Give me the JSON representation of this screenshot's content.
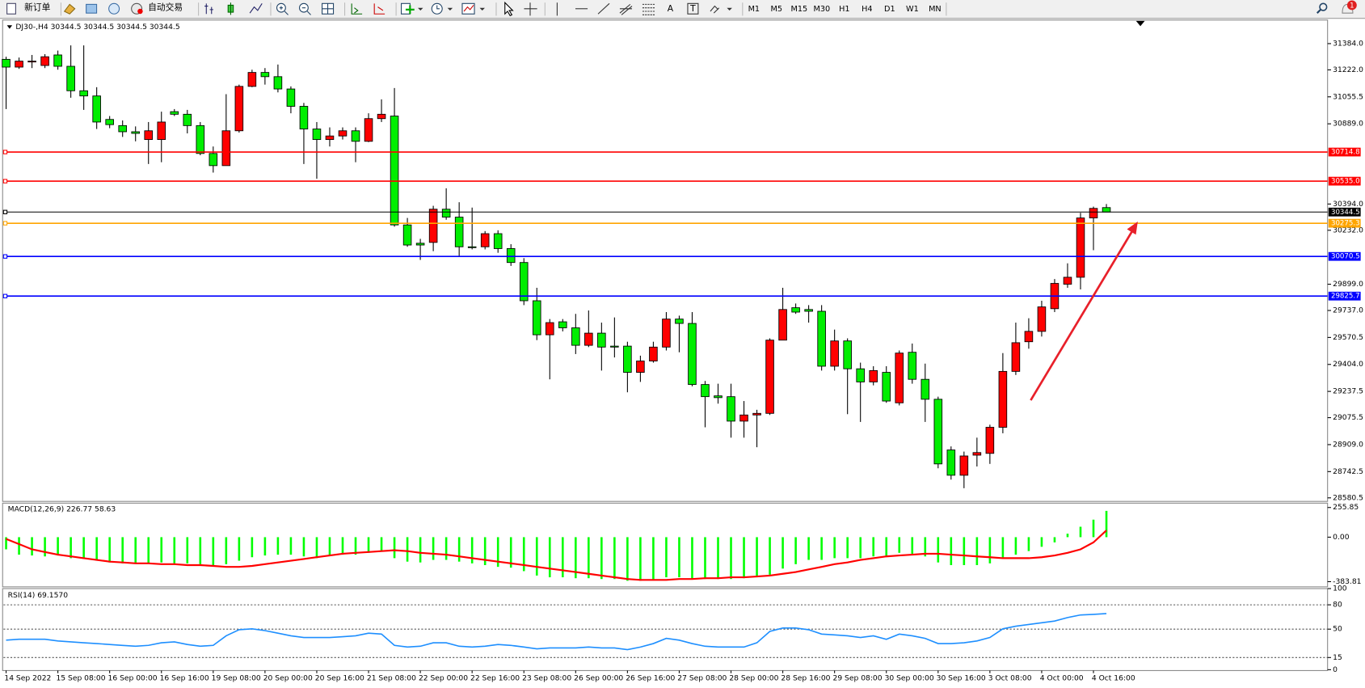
{
  "toolbar": {
    "new_order": "新订单",
    "auto_trading": "自动交易",
    "text_tool": "A",
    "label_tool": "T",
    "timeframes": [
      "M1",
      "M5",
      "M15",
      "M30",
      "H1",
      "H4",
      "D1",
      "W1",
      "MN"
    ],
    "notifications": 1
  },
  "chart_data": [
    {
      "type": "candlestick",
      "title": "DJ30-,H4  30344.5 30344.5 30344.5 30344.5",
      "categories": [
        "14 Sep 2022",
        null,
        null,
        null,
        "15 Sep 08:00",
        null,
        null,
        null,
        "16 Sep 00:00",
        null,
        null,
        null,
        "16 Sep 16:00",
        null,
        null,
        null,
        "19 Sep 08:00",
        null,
        null,
        null,
        "20 Sep 00:00",
        null,
        null,
        null,
        "20 Sep 16:00",
        null,
        null,
        null,
        "21 Sep 08:00",
        null,
        null,
        null,
        "22 Sep 00:00",
        null,
        null,
        null,
        "22 Sep 16:00",
        null,
        null,
        null,
        "23 Sep 08:00",
        null,
        null,
        null,
        "26 Sep 00:00",
        null,
        null,
        null,
        "26 Sep 16:00",
        null,
        null,
        null,
        "27 Sep 08:00",
        null,
        null,
        null,
        "28 Sep 00:00",
        null,
        null,
        null,
        "28 Sep 16:00",
        null,
        null,
        null,
        "29 Sep 08:00",
        null,
        null,
        null,
        "30 Sep 00:00",
        null,
        null,
        null,
        "30 Sep 16:00",
        null,
        null,
        null,
        "3 Oct 08:00",
        null,
        null,
        null,
        "4 Oct 00:00",
        null,
        null,
        null,
        "4 Oct 16:00",
        null
      ],
      "open": [
        31287,
        31239,
        31271,
        31249,
        31314,
        31244,
        31093,
        31061,
        30916,
        30878,
        30840,
        30792,
        30792,
        30964,
        30948,
        30878,
        30706,
        30631,
        30846,
        31120,
        31206,
        31180,
        31104,
        30997,
        30857,
        30792,
        30814,
        30846,
        30781,
        30921,
        30937,
        30265,
        30152,
        30157,
        30362,
        30313,
        30130,
        30130,
        30211,
        30119,
        30033,
        29797,
        29587,
        29667,
        29630,
        29522,
        29597,
        29517,
        29517,
        29355,
        29425,
        29511,
        29684,
        29657,
        29280,
        29210,
        29205,
        29054,
        29092,
        29102,
        29554,
        29754,
        29743,
        29732,
        29393,
        29549,
        29377,
        29296,
        29355,
        29167,
        29479,
        29312,
        29189,
        28876,
        28720,
        28844,
        28855,
        29016,
        29361,
        29544,
        29608,
        29748,
        29899,
        29942,
        30308,
        30372
      ],
      "high": [
        31303,
        31298,
        31314,
        31319,
        31341,
        31373,
        31373,
        31115,
        30937,
        30910,
        30873,
        30900,
        30964,
        30980,
        30975,
        30900,
        30749,
        31072,
        31131,
        31223,
        31233,
        31255,
        31120,
        31018,
        30900,
        30867,
        30867,
        30867,
        30954,
        31040,
        31110,
        30308,
        30179,
        30383,
        30491,
        30405,
        30372,
        30227,
        30232,
        30146,
        30060,
        29877,
        29684,
        29684,
        29716,
        29737,
        29662,
        29694,
        29544,
        29458,
        29544,
        29727,
        29705,
        29727,
        29302,
        29285,
        29285,
        29178,
        29124,
        29565,
        29877,
        29780,
        29770,
        29770,
        29619,
        29565,
        29415,
        29393,
        29393,
        29490,
        29533,
        29409,
        29205,
        28898,
        28866,
        28952,
        29032,
        29474,
        29662,
        29689,
        29797,
        29931,
        30028,
        30340,
        30378,
        30394
      ],
      "low": [
        30980,
        31228,
        31233,
        31233,
        31223,
        31050,
        30975,
        30857,
        30862,
        30808,
        30781,
        30641,
        30652,
        30937,
        30830,
        30695,
        30588,
        30631,
        30835,
        31115,
        31131,
        31083,
        30954,
        30641,
        30550,
        30749,
        30792,
        30652,
        30776,
        30900,
        30254,
        30130,
        30049,
        30103,
        30297,
        30071,
        30114,
        30114,
        30093,
        30012,
        29770,
        29554,
        29312,
        29608,
        29468,
        29511,
        29366,
        29447,
        29232,
        29296,
        29415,
        29490,
        29479,
        29269,
        29016,
        29162,
        28952,
        28952,
        28893,
        29092,
        29554,
        29716,
        29662,
        29366,
        29366,
        29097,
        29049,
        29275,
        29167,
        29151,
        29285,
        29049,
        28763,
        28693,
        28640,
        28774,
        28790,
        28979,
        29339,
        29501,
        29576,
        29727,
        29877,
        29867,
        30109,
        30345
      ],
      "close": [
        31239,
        31276,
        31276,
        31303,
        31244,
        31093,
        31061,
        30900,
        30884,
        30840,
        30830,
        30846,
        30900,
        30948,
        30878,
        30706,
        30631,
        30846,
        31120,
        31206,
        31180,
        31104,
        30997,
        30857,
        30792,
        30814,
        30846,
        30781,
        30921,
        30948,
        30265,
        30141,
        30141,
        30362,
        30313,
        30130,
        30125,
        30211,
        30119,
        30033,
        29797,
        29587,
        29662,
        29630,
        29522,
        29597,
        29511,
        29511,
        29355,
        29425,
        29511,
        29684,
        29657,
        29280,
        29205,
        29199,
        29054,
        29092,
        29102,
        29554,
        29743,
        29727,
        29732,
        29393,
        29549,
        29377,
        29296,
        29366,
        29178,
        29474,
        29312,
        29189,
        28790,
        28720,
        28839,
        28860,
        29016,
        29361,
        29538,
        29608,
        29759,
        29904,
        29942,
        30308,
        30367,
        30344.5
      ],
      "up_color": "#ff0000",
      "down_color": "#00ee00",
      "ylim": [
        28564,
        31524
      ],
      "yticks": [
        {
          "value": 31384,
          "label": "31384.0"
        },
        {
          "value": 31222,
          "label": "31222.0"
        },
        {
          "value": 31055.5,
          "label": "31055.5"
        },
        {
          "value": 30889,
          "label": "30889.0"
        },
        {
          "value": 30394,
          "label": "30394.0"
        },
        {
          "value": 30232,
          "label": "30232.0"
        },
        {
          "value": 29899,
          "label": "29899.0"
        },
        {
          "value": 29737,
          "label": "29737.0"
        },
        {
          "value": 29570.5,
          "label": "29570.5"
        },
        {
          "value": 29404,
          "label": "29404.0"
        },
        {
          "value": 29237.5,
          "label": "29237.5"
        },
        {
          "value": 29075.5,
          "label": "29075.5"
        },
        {
          "value": 28909,
          "label": "28909.0"
        },
        {
          "value": 28742.5,
          "label": "28742.5"
        },
        {
          "value": 28580.5,
          "label": "28580.5"
        }
      ],
      "levels": [
        {
          "value": 30714.8,
          "color": "#ff0000"
        },
        {
          "value": 30535,
          "label": "30535.0",
          "color": "#ff0000"
        },
        {
          "value": 30344.5,
          "color": "#000000"
        },
        {
          "value": 30275.3,
          "color": "#ffa500"
        },
        {
          "value": 30070.5,
          "color": "#0000ff"
        },
        {
          "value": 29825.7,
          "color": "#0000ff"
        }
      ]
    },
    {
      "type": "macd",
      "title": "MACD(12,26,9) 226.77 58.63",
      "histogram": {
        "color": "#00ff00",
        "values": [
          -105,
          -151,
          -158,
          -166,
          -158,
          -181,
          -188,
          -203,
          -218,
          -226,
          -226,
          -226,
          -218,
          -226,
          -226,
          -233,
          -248,
          -233,
          -203,
          -173,
          -158,
          -151,
          -151,
          -166,
          -181,
          -158,
          -151,
          -151,
          -135,
          -120,
          -181,
          -211,
          -218,
          -196,
          -196,
          -211,
          -226,
          -241,
          -256,
          -263,
          -293,
          -331,
          -346,
          -346,
          -354,
          -354,
          -361,
          -361,
          -376,
          -376,
          -369,
          -346,
          -346,
          -361,
          -361,
          -361,
          -361,
          -354,
          -346,
          -324,
          -271,
          -233,
          -196,
          -196,
          -181,
          -181,
          -181,
          -166,
          -166,
          -135,
          -143,
          -166,
          -218,
          -241,
          -241,
          -241,
          -226,
          -181,
          -151,
          -120,
          -83,
          -45,
          30,
          90,
          151,
          226.77
        ]
      },
      "signal": {
        "color": "#ff0000",
        "values": [
          -15,
          -60,
          -105,
          -128,
          -151,
          -166,
          -181,
          -196,
          -211,
          -218,
          -226,
          -226,
          -233,
          -233,
          -241,
          -241,
          -248,
          -256,
          -256,
          -248,
          -233,
          -218,
          -203,
          -188,
          -173,
          -158,
          -143,
          -135,
          -128,
          -120,
          -113,
          -120,
          -135,
          -143,
          -151,
          -166,
          -181,
          -196,
          -211,
          -226,
          -241,
          -256,
          -271,
          -286,
          -301,
          -316,
          -331,
          -346,
          -361,
          -369,
          -369,
          -369,
          -361,
          -361,
          -354,
          -354,
          -346,
          -346,
          -339,
          -331,
          -316,
          -301,
          -278,
          -256,
          -233,
          -218,
          -196,
          -181,
          -166,
          -158,
          -151,
          -143,
          -143,
          -151,
          -158,
          -166,
          -173,
          -181,
          -181,
          -181,
          -173,
          -158,
          -135,
          -105,
          -45,
          58.63
        ]
      },
      "ylim": [
        -421,
        286
      ],
      "yticks": [
        255.85,
        {
          "value": 0,
          "label": "0.00"
        },
        -383.81
      ]
    },
    {
      "type": "line",
      "title": "RSI(14) 69.1570",
      "color": "#1e8fff",
      "values": [
        36.4,
        37.5,
        37.5,
        37.5,
        35.4,
        34.3,
        33.2,
        32.2,
        31.1,
        30.0,
        28.9,
        30.0,
        33.2,
        34.3,
        31.1,
        28.9,
        30.0,
        41.8,
        49.3,
        50.4,
        48.2,
        45.0,
        41.8,
        39.7,
        39.7,
        39.7,
        40.7,
        41.8,
        45.0,
        43.9,
        30.0,
        27.9,
        28.9,
        33.2,
        33.2,
        28.9,
        27.9,
        28.9,
        31.1,
        30.0,
        27.9,
        25.7,
        26.8,
        26.8,
        26.8,
        27.9,
        26.8,
        26.8,
        24.7,
        27.9,
        32.2,
        38.6,
        36.4,
        32.2,
        28.9,
        27.9,
        27.9,
        27.9,
        33.2,
        47.2,
        51.4,
        51.4,
        49.3,
        43.9,
        42.9,
        41.8,
        39.7,
        41.8,
        37.5,
        43.9,
        41.8,
        38.6,
        32.2,
        32.2,
        33.2,
        35.4,
        39.7,
        50.4,
        53.6,
        55.7,
        57.9,
        60.0,
        64.3,
        67.5,
        68.2,
        69.157
      ],
      "ylim": [
        0,
        100
      ],
      "yticks": [
        100,
        80,
        50,
        15,
        0
      ],
      "levels": [
        80,
        50,
        15
      ]
    }
  ]
}
